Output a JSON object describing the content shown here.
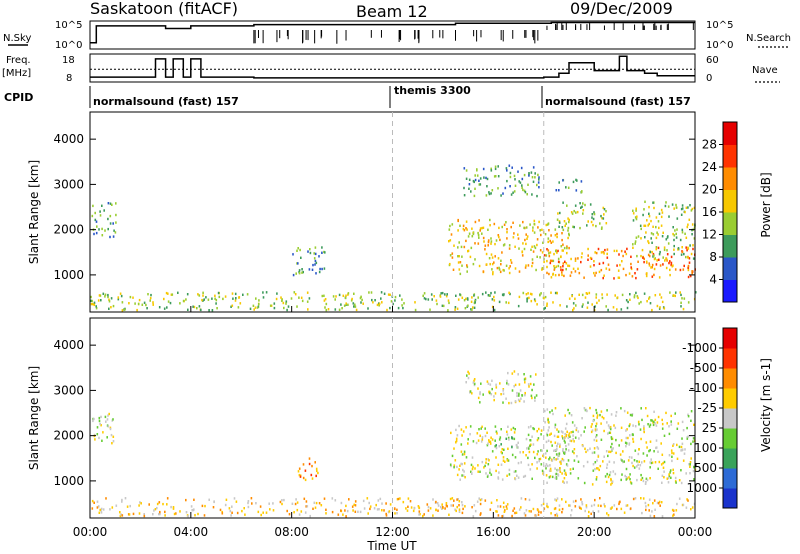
{
  "header": {
    "station": "Saskatoon (fitACF)",
    "beam": "Beam 12",
    "date": "09/Dec/2009"
  },
  "top_panels": {
    "nsky_label": "N.Sky",
    "nsky_ticks": [
      "10^5",
      "10^0"
    ],
    "nsearch_ticks": [
      "10^5",
      "10^0"
    ],
    "nsearch_label": "N.Search",
    "freq_label_1": "Freq.",
    "freq_label_2": "[MHz]",
    "freq_ticks": [
      "18",
      "8"
    ],
    "nave_ticks": [
      "60",
      "0"
    ],
    "nave_label": "Nave",
    "cpid_label": "CPID",
    "cpid_segments": [
      "normalsound (fast) 157",
      "themis 3300",
      "normalsound (fast) 157"
    ]
  },
  "chart_data": [
    {
      "type": "heatmap",
      "title": "",
      "ylabel": "Slant Range [km]",
      "xlabel": "",
      "ylim": [
        180,
        4600
      ],
      "yticks": [
        "1000",
        "2000",
        "3000",
        "4000"
      ],
      "colorbar": {
        "label": "Power [dB]",
        "ticks": [
          "4",
          "8",
          "12",
          "16",
          "20",
          "24",
          "28"
        ],
        "colors": [
          "#1a1aff",
          "#2a57c8",
          "#3d9b5b",
          "#9acd32",
          "#f7c800",
          "#ff8c00",
          "#ff3300",
          "#e60000"
        ]
      },
      "echo_regions": [
        {
          "t0": 0.05,
          "t1": 1.0,
          "r0": 1800,
          "r1": 2600,
          "level": 2
        },
        {
          "t0": 0.0,
          "t1": 24.0,
          "r0": 200,
          "r1": 600,
          "level": 3
        },
        {
          "t0": 8.0,
          "t1": 9.3,
          "r0": 900,
          "r1": 1600,
          "level": 2
        },
        {
          "t0": 14.2,
          "t1": 19.0,
          "r0": 1000,
          "r1": 2200,
          "level": 4
        },
        {
          "t0": 14.8,
          "t1": 17.8,
          "r0": 2700,
          "r1": 3400,
          "level": 2
        },
        {
          "t0": 18.0,
          "t1": 24.0,
          "r0": 900,
          "r1": 1600,
          "level": 5
        },
        {
          "t0": 18.5,
          "t1": 20.5,
          "r0": 2000,
          "r1": 2600,
          "level": 3
        },
        {
          "t0": 21.5,
          "t1": 24.0,
          "r0": 1300,
          "r1": 2600,
          "level": 3
        },
        {
          "t0": 18.3,
          "t1": 19.5,
          "r0": 2800,
          "r1": 3100,
          "level": 2
        }
      ]
    },
    {
      "type": "heatmap",
      "title": "",
      "ylabel": "Slant Range [km]",
      "xlabel": "Time UT",
      "ylim": [
        180,
        4600
      ],
      "yticks": [
        "1000",
        "2000",
        "3000",
        "4000"
      ],
      "xticks": [
        "00:00",
        "04:00",
        "08:00",
        "12:00",
        "16:00",
        "20:00",
        "00:00"
      ],
      "colorbar": {
        "label": "Velocity [m s-1]",
        "ticks": [
          "1000",
          "500",
          "100",
          "25",
          "-25",
          "-100",
          "-500",
          "-1000"
        ],
        "colors": [
          "#1a33cc",
          "#2d6bd6",
          "#3aa35a",
          "#66cc33",
          "#c8c8c8",
          "#ffcc00",
          "#ff8c00",
          "#ff3300",
          "#e60000"
        ]
      },
      "echo_regions": [
        {
          "t0": 0.05,
          "t1": 1.0,
          "r0": 1800,
          "r1": 2600,
          "level": 4
        },
        {
          "t0": 0.0,
          "t1": 24.0,
          "r0": 200,
          "r1": 600,
          "level": 5
        },
        {
          "t0": 8.2,
          "t1": 9.1,
          "r0": 1000,
          "r1": 1500,
          "level": 6
        },
        {
          "t0": 14.2,
          "t1": 19.0,
          "r0": 1000,
          "r1": 2200,
          "level": 4
        },
        {
          "t0": 14.8,
          "t1": 17.8,
          "r0": 2700,
          "r1": 3400,
          "level": 4
        },
        {
          "t0": 18.0,
          "t1": 24.0,
          "r0": 900,
          "r1": 2600,
          "level": 4
        },
        {
          "t0": 16.0,
          "t1": 17.0,
          "r0": 1700,
          "r1": 2000,
          "level": 3
        }
      ]
    }
  ],
  "time_axis": {
    "range_hours": [
      0,
      24
    ],
    "marker_hours": [
      12,
      18
    ],
    "tick_labels": [
      "00:00",
      "04:00",
      "08:00",
      "12:00",
      "16:00",
      "20:00",
      "00:00"
    ],
    "label": "Time UT"
  },
  "line_series": {
    "nsky_steps": [
      [
        0,
        0.2
      ],
      [
        0.25,
        0.85
      ],
      [
        3.0,
        0.75
      ],
      [
        4.0,
        0.85
      ],
      [
        6.5,
        0.9
      ],
      [
        12.0,
        0.9
      ],
      [
        14.5,
        0.95
      ],
      [
        18.3,
        0.98
      ],
      [
        24,
        0.98
      ]
    ],
    "freq_steps": [
      [
        0,
        0.15
      ],
      [
        2.6,
        0.85
      ],
      [
        3.0,
        0.15
      ],
      [
        3.3,
        0.85
      ],
      [
        3.7,
        0.15
      ],
      [
        4.0,
        0.85
      ],
      [
        4.4,
        0.15
      ],
      [
        6.5,
        0.12
      ],
      [
        12.0,
        0.12
      ],
      [
        18.0,
        0.15
      ],
      [
        18.6,
        0.3
      ],
      [
        19.0,
        0.7
      ],
      [
        20.0,
        0.4
      ],
      [
        21.0,
        0.95
      ],
      [
        21.3,
        0.4
      ],
      [
        22.0,
        0.3
      ],
      [
        22.5,
        0.2
      ],
      [
        24,
        0.2
      ]
    ],
    "nave_level": 0.45
  }
}
